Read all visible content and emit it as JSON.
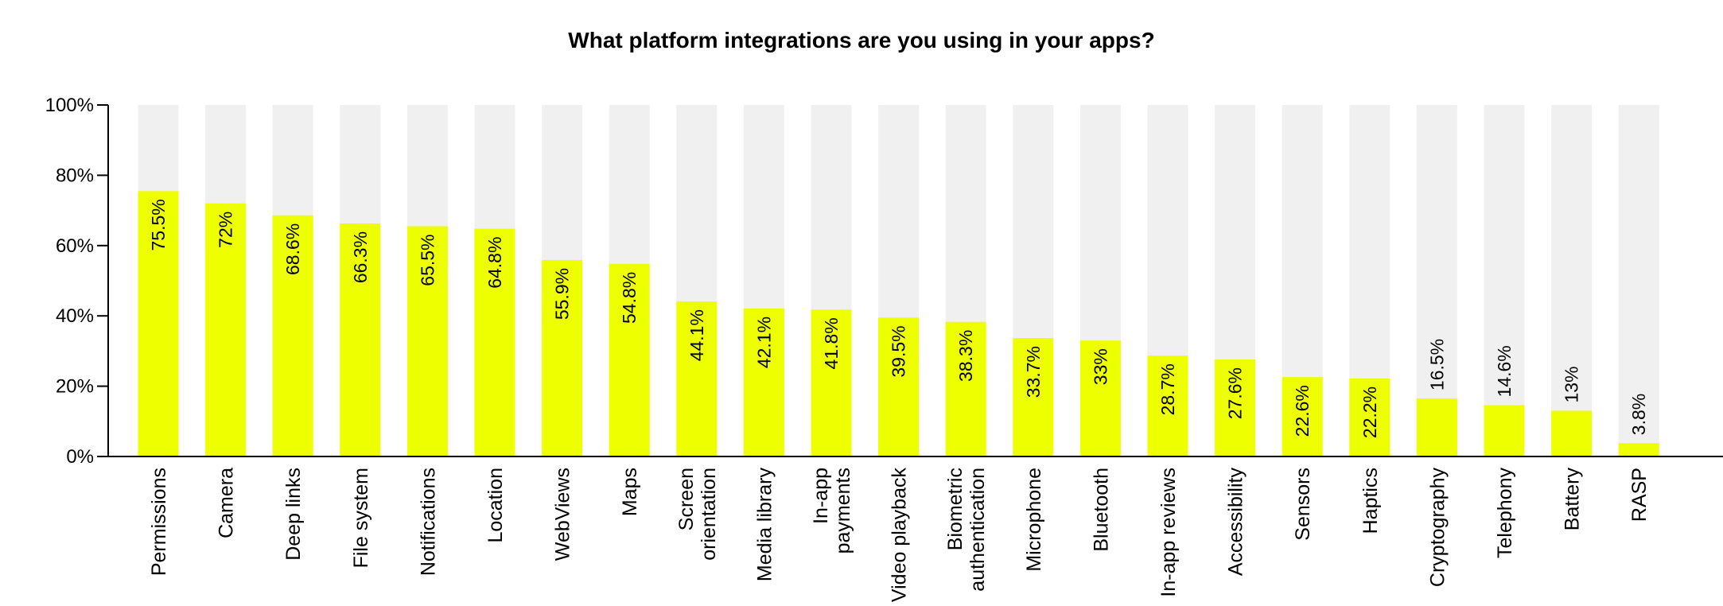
{
  "chart_data": {
    "type": "bar",
    "title": "What platform integrations are you using in your apps?",
    "xlabel": "",
    "ylabel": "",
    "ylim": [
      0,
      100
    ],
    "yticks": [
      "0%",
      "20%",
      "40%",
      "60%",
      "80%",
      "100%"
    ],
    "categories": [
      "Permissions",
      "Camera",
      "Deep links",
      "File system",
      "Notifications",
      "Location",
      "WebViews",
      "Maps",
      "Screen orientation",
      "Media library",
      "In-app payments",
      "Video playback",
      "Biometric authentication",
      "Microphone",
      "Bluetooth",
      "In-app reviews",
      "Accessibility",
      "Sensors",
      "Haptics",
      "Cryptography",
      "Telephony",
      "Battery",
      "RASP"
    ],
    "category_lines": [
      [
        "Permissions"
      ],
      [
        "Camera"
      ],
      [
        "Deep links"
      ],
      [
        "File system"
      ],
      [
        "Notifications"
      ],
      [
        "Location"
      ],
      [
        "WebViews"
      ],
      [
        "Maps"
      ],
      [
        "Screen",
        "orientation"
      ],
      [
        "Media library"
      ],
      [
        "In-app",
        "payments"
      ],
      [
        "Video playback"
      ],
      [
        "Biometric",
        "authentication"
      ],
      [
        "Microphone"
      ],
      [
        "Bluetooth"
      ],
      [
        "In-app reviews"
      ],
      [
        "Accessibility"
      ],
      [
        "Sensors"
      ],
      [
        "Haptics"
      ],
      [
        "Cryptography"
      ],
      [
        "Telephony"
      ],
      [
        "Battery"
      ],
      [
        "RASP"
      ]
    ],
    "values": [
      75.5,
      72,
      68.6,
      66.3,
      65.5,
      64.8,
      55.9,
      54.8,
      44.1,
      42.1,
      41.8,
      39.5,
      38.3,
      33.7,
      33,
      28.7,
      27.6,
      22.6,
      22.2,
      16.5,
      14.6,
      13,
      3.8
    ],
    "labels": [
      "75.5%",
      "72%",
      "68.6%",
      "66.3%",
      "65.5%",
      "64.8%",
      "55.9%",
      "54.8%",
      "44.1%",
      "42.1%",
      "41.8%",
      "39.5%",
      "38.3%",
      "33.7%",
      "33%",
      "28.7%",
      "27.6%",
      "22.6%",
      "22.2%",
      "16.5%",
      "14.6%",
      "13%",
      "3.8%"
    ],
    "colors": {
      "bar": "#eeff00",
      "background_bar": "#f0f0f0",
      "axis": "#000000"
    },
    "grid": false,
    "legend": "none"
  }
}
